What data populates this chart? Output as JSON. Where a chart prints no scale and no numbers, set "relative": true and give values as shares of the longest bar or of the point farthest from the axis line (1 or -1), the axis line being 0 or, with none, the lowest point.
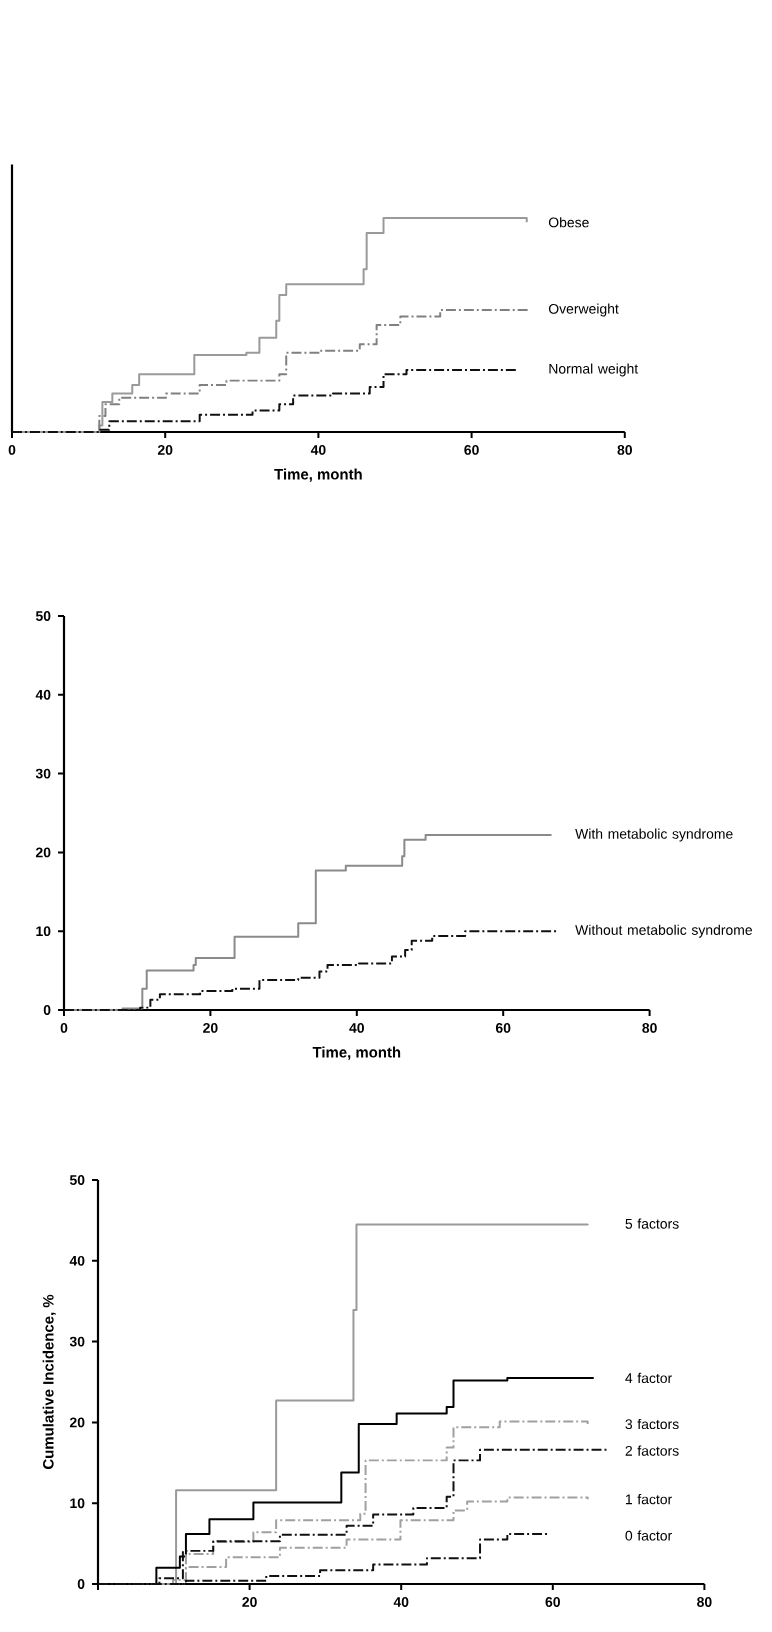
{
  "chart_data": [
    {
      "type": "step",
      "xlabel": "Time, month",
      "relative": true,
      "xlim": [
        0,
        80
      ],
      "xticks": [
        0,
        20,
        40,
        60,
        80
      ],
      "series": [
        {
          "name": "Obese",
          "color": "#9a9a9a",
          "line_style": "solid",
          "x": [
            0,
            11.4,
            11.8,
            13.1,
            15.7,
            16.6,
            23.8,
            30.6,
            32.3,
            34.5,
            34.9,
            35.8,
            45.9,
            46.3,
            48.5,
            67.2
          ],
          "values": [
            0,
            0.03,
            0.14,
            0.18,
            0.22,
            0.27,
            0.36,
            0.37,
            0.44,
            0.52,
            0.64,
            0.69,
            0.76,
            0.93,
            1.0,
            0.98
          ]
        },
        {
          "name": "Overweight",
          "color": "#808080",
          "line_style": "dashed",
          "x": [
            0,
            11.4,
            12.2,
            14,
            20.1,
            24.5,
            28,
            34.9,
            35.8,
            40.2,
            45.4,
            47.6,
            50.7,
            55.9,
            67.7
          ],
          "values": [
            0,
            0.075,
            0.13,
            0.16,
            0.18,
            0.22,
            0.24,
            0.27,
            0.37,
            0.38,
            0.41,
            0.5,
            0.54,
            0.57,
            0.57
          ]
        },
        {
          "name": "Normal weight",
          "color": "#111111",
          "line_style": "dashed",
          "x": [
            0,
            11.4,
            12.7,
            24.5,
            31.4,
            34.9,
            36.7,
            41.9,
            46.7,
            48.5,
            51.5,
            66
          ],
          "values": [
            0,
            0.01,
            0.05,
            0.08,
            0.1,
            0.13,
            0.17,
            0.18,
            0.21,
            0.27,
            0.29,
            0.29
          ]
        }
      ]
    },
    {
      "type": "step",
      "xlabel": "Time, month",
      "xlim": [
        0,
        80
      ],
      "xticks": [
        0,
        20,
        40,
        60,
        80
      ],
      "ylim": [
        0,
        50
      ],
      "yticks": [
        0,
        10,
        20,
        30,
        40,
        50
      ],
      "series": [
        {
          "name": "With metabolic syndrome",
          "color": "#8a8a8a",
          "line_style": "solid",
          "x": [
            0,
            8,
            10.7,
            11.3,
            17.7,
            18,
            23.3,
            32,
            34.4,
            38.5,
            46.2,
            46.5,
            49.4,
            66.6
          ],
          "values": [
            0,
            0.2,
            2.7,
            5.0,
            5.7,
            6.6,
            9.3,
            11,
            17.7,
            18.3,
            19.5,
            21.6,
            22.2,
            22.2
          ]
        },
        {
          "name": "Without metabolic syndrome",
          "color": "#111111",
          "line_style": "dashed",
          "x": [
            0,
            10.4,
            11.8,
            13.1,
            18.6,
            23,
            26.7,
            32,
            34.9,
            36,
            40.3,
            44.8,
            46.6,
            47.5,
            50.3,
            54.8,
            67.5
          ],
          "values": [
            0,
            0.3,
            1.3,
            2.0,
            2.4,
            2.7,
            3.8,
            4.1,
            4.9,
            5.7,
            5.9,
            6.8,
            7.6,
            8.8,
            9.4,
            10.0,
            10.0
          ]
        }
      ]
    },
    {
      "type": "step",
      "ylabel": "Cumulative Incidence, %",
      "xlim": [
        0,
        80
      ],
      "xticks": [
        {
          "value": 0,
          "label": null
        },
        20,
        40,
        60,
        80
      ],
      "ylim": [
        0,
        50
      ],
      "yticks": [
        0,
        10,
        20,
        30,
        40,
        50
      ],
      "series": [
        {
          "name": "5 factors",
          "color": "#9a9a9a",
          "line_style": "solid",
          "x": [
            0,
            10.3,
            23.5,
            33.7,
            34.1,
            64.6
          ],
          "values": [
            0,
            11.6,
            22.7,
            33.9,
            44.5,
            44.6
          ]
        },
        {
          "name": "4 factor",
          "color": "#000000",
          "line_style": "solid",
          "x": [
            0,
            7.7,
            10.8,
            11.6,
            14.7,
            20.5,
            32.1,
            34.4,
            39.4,
            46,
            46.9,
            54,
            65.4
          ],
          "values": [
            0,
            2.0,
            3.4,
            6.2,
            8.0,
            10.1,
            13.8,
            19.8,
            21.1,
            21.9,
            25.2,
            25.5,
            25.5
          ]
        },
        {
          "name": "3 factors",
          "color": "#a0a0a0",
          "line_style": "dashed",
          "x": [
            0,
            9.9,
            11.6,
            15.2,
            20.5,
            23.5,
            34.6,
            35.3,
            46,
            46.9,
            53,
            64.6
          ],
          "values": [
            0,
            0.5,
            3.7,
            5.2,
            6.4,
            7.9,
            8.7,
            15.3,
            16.9,
            19.4,
            20.1,
            19.8
          ]
        },
        {
          "name": "2 factors",
          "color": "#111111",
          "line_style": "dashed",
          "x": [
            0,
            8.1,
            11.2,
            15.2,
            24,
            32.8,
            36.3,
            41.6,
            46,
            46.9,
            50.4,
            67.2
          ],
          "values": [
            0,
            0.7,
            4.1,
            5.3,
            6.1,
            7.2,
            8.6,
            9.4,
            10.8,
            15.3,
            16.6,
            16.5
          ]
        },
        {
          "name": "1 factor",
          "color": "#a0a0a0",
          "line_style": "dashed",
          "x": [
            0,
            11.6,
            16.9,
            24,
            32.8,
            39.9,
            46.9,
            48.7,
            54,
            64.6
          ],
          "values": [
            0,
            2.1,
            3.3,
            4.5,
            5.5,
            7.9,
            9.1,
            10.2,
            10.7,
            10.5
          ]
        },
        {
          "name": "0 factor",
          "color": "#111111",
          "line_style": "dashed",
          "x": [
            0,
            11.6,
            22.2,
            29.3,
            36.3,
            43.4,
            50.4,
            54,
            59.3
          ],
          "values": [
            0,
            0.4,
            1.0,
            1.7,
            2.4,
            3.2,
            5.5,
            6.2,
            6.0
          ]
        }
      ]
    }
  ]
}
